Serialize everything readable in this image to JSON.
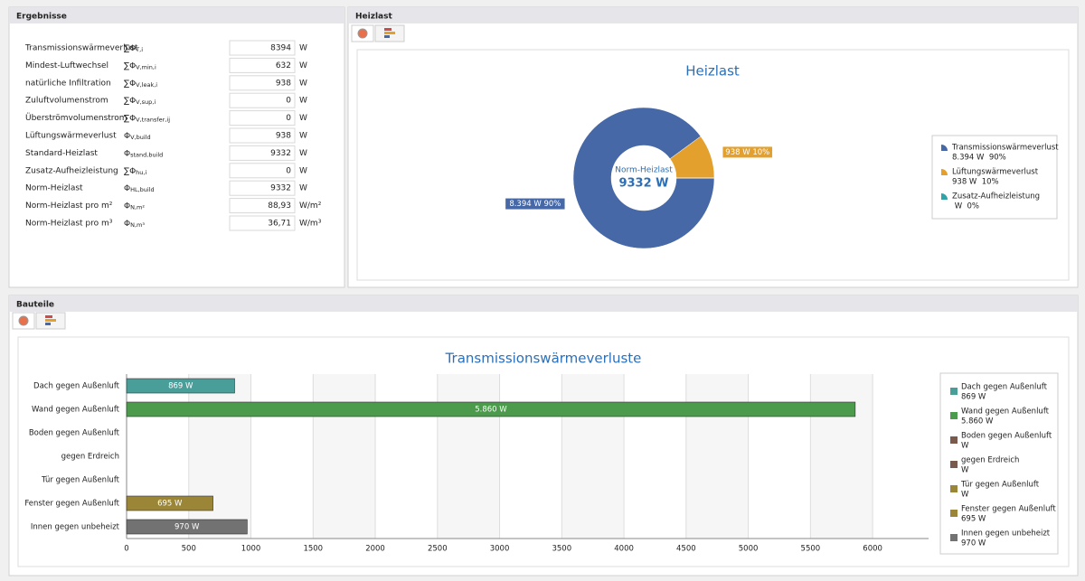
{
  "panels": {
    "results": {
      "title": "Ergebnisse",
      "rows": [
        {
          "label": "Transmissionswärmeverlust",
          "symbol": "∑Φ",
          "sub": "T,i",
          "value": "8394",
          "unit": "W"
        },
        {
          "label": "Mindest-Luftwechsel",
          "symbol": "∑Φ",
          "sub": "V,min,i",
          "value": "632",
          "unit": "W"
        },
        {
          "label": "natürliche Infiltration",
          "symbol": "∑Φ",
          "sub": "V,leak,i",
          "value": "938",
          "unit": "W"
        },
        {
          "label": "Zuluftvolumenstrom",
          "symbol": "∑Φ",
          "sub": "V,sup,i",
          "value": "0",
          "unit": "W"
        },
        {
          "label": "Überströmvolumenstrom",
          "symbol": "∑Φ",
          "sub": "V,transfer,ij",
          "value": "0",
          "unit": "W"
        },
        {
          "label": "Lüftungswärmeverlust",
          "symbol": "Φ",
          "sub": "V,build",
          "value": "938",
          "unit": "W"
        },
        {
          "label": "Standard-Heizlast",
          "symbol": "Φ",
          "sub": "stand,build",
          "value": "9332",
          "unit": "W"
        },
        {
          "label": "Zusatz-Aufheizleistung",
          "symbol": "∑Φ",
          "sub": "hu,i",
          "value": "0",
          "unit": "W"
        },
        {
          "label": "Norm-Heizlast",
          "symbol": "Φ",
          "sub": "HL,build",
          "value": "9332",
          "unit": "W"
        },
        {
          "label": "Norm-Heizlast pro m²",
          "symbol": "Φ",
          "sub": "N,m²",
          "value": "88,93",
          "unit": "W/m²"
        },
        {
          "label": "Norm-Heizlast pro m³",
          "symbol": "Φ",
          "sub": "N,m³",
          "value": "36,71",
          "unit": "W/m³"
        }
      ]
    },
    "heizlast": {
      "title": "Heizlast"
    },
    "bauteile": {
      "title": "Bauteile"
    }
  },
  "chart_data": [
    {
      "type": "pie",
      "title": "Heizlast",
      "center_label": "Norm-Heizlast",
      "center_value": "9332 W",
      "categories": [
        "Transmissionswärmeverlust",
        "Lüftungswärmeverlust",
        "Zusatz-Aufheizleistung"
      ],
      "values": [
        8394,
        938,
        0
      ],
      "value_labels": [
        "8.394 W 90%",
        "938 W 10%",
        null
      ],
      "legend_labels": [
        "8.394 W  90%",
        "938 W  10%",
        " W  0%"
      ],
      "colors": [
        "#4668a6",
        "#e3a02c",
        "#2ea3a8"
      ]
    },
    {
      "type": "bar",
      "title": "Transmissionswärmeverluste",
      "categories": [
        "Dach gegen Außenluft",
        "Wand gegen Außenluft",
        "Boden gegen Außenluft",
        "gegen Erdreich",
        "Tür gegen Außenluft",
        "Fenster gegen Außenluft",
        "Innen gegen unbeheizt"
      ],
      "values": [
        869,
        5860,
        null,
        null,
        null,
        695,
        970
      ],
      "value_labels": [
        "869 W",
        "5.860 W",
        null,
        null,
        null,
        "695 W",
        "970 W"
      ],
      "legend_labels": [
        "869 W",
        "5.860 W",
        "W",
        "W",
        "W",
        "695 W",
        "970 W"
      ],
      "colors": [
        "#4a9e9a",
        "#4c9a4c",
        "#7a5a4c",
        "#7a5a4c",
        "#9a8636",
        "#9a8636",
        "#727272"
      ],
      "xlim": [
        0,
        6450
      ],
      "xticks": [
        0,
        500,
        1000,
        1500,
        2000,
        2500,
        3000,
        3500,
        4000,
        4500,
        5000,
        5500,
        6000
      ],
      "grid": true
    }
  ]
}
